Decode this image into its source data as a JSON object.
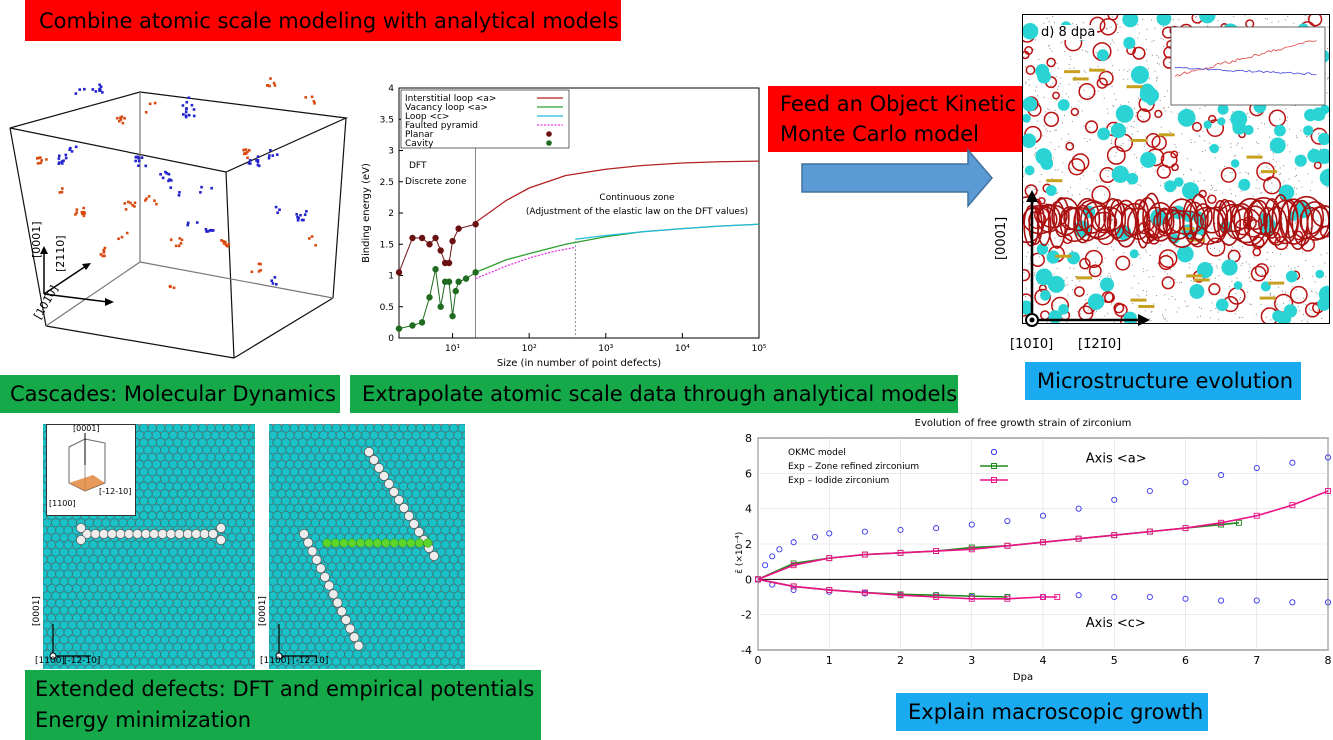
{
  "boxes": {
    "top_left": "Combine atomic scale modeling with analytical models",
    "feed_line1": "Feed an Object Kinetic",
    "feed_line2": "Monte Carlo model",
    "cascades": "Cascades: Molecular Dynamics",
    "extrapolate": "Extrapolate atomic scale data through analytical models",
    "microstructure": "Microstructure evolution",
    "extended_line1": "Extended defects: DFT and empirical potentials",
    "extended_line2": "Energy minimization",
    "explain": "Explain macroscopic growth"
  },
  "cube": {
    "axis_z": "[0001]",
    "axis_y": "[2̄110]",
    "axis_x": "[101̄0]"
  },
  "okmc": {
    "panel_label": "d) 8 dpa",
    "axis_vertical": "[0001]",
    "axis_origin": "[101̄0]",
    "axis_right": "[1̄21̄0]"
  },
  "atoms_left": {
    "inset_axis_top": "[0001]",
    "inset_axis_left": "[1100]",
    "inset_axis_right": "[-12-10]",
    "axis_vertical": "[0001]",
    "axis_origin": "[1100]",
    "axis_right": "[-12-10]"
  },
  "atoms_right": {
    "axis_vertical": "[0001]",
    "axis_origin": "[1100]",
    "axis_right": "[-12-10]"
  },
  "chart_data": [
    {
      "type": "line",
      "xlabel": "Size (in number of point defects)",
      "ylabel": "Binding energy (eV)",
      "x_scale": "log",
      "xlim": [
        2,
        100000
      ],
      "ylim": [
        0,
        4
      ],
      "x_ticks": [
        "10¹",
        "10²",
        "10³",
        "10⁴",
        "10⁵"
      ],
      "y_ticks": [
        "0",
        "0.5",
        "1",
        "1.5",
        "2",
        "2.5",
        "3",
        "3.5",
        "4"
      ],
      "annotations": [
        "DFT",
        "Discrete zone",
        "Continuous zone",
        "(Adjustment of the elastic law on   the DFT values)"
      ],
      "legend_position": "top-left",
      "series": [
        {
          "name": "Interstitial loop <a>",
          "color": "#b22222",
          "style": "line",
          "x": [
            20,
            50,
            100,
            300,
            1000,
            3000,
            10000,
            30000,
            100000
          ],
          "y": [
            1.85,
            2.2,
            2.4,
            2.6,
            2.7,
            2.76,
            2.8,
            2.82,
            2.83
          ]
        },
        {
          "name": "Vacancy loop <a>",
          "color": "#2ea02e",
          "style": "line",
          "x": [
            20,
            50,
            100,
            300,
            1000,
            3000,
            10000,
            30000,
            100000
          ],
          "y": [
            1.05,
            1.25,
            1.35,
            1.5,
            1.62,
            1.7,
            1.75,
            1.79,
            1.82
          ]
        },
        {
          "name": "Loop <c>",
          "color": "#22bbdd",
          "style": "line",
          "x": [
            400,
            1000,
            3000,
            10000,
            30000,
            100000
          ],
          "y": [
            1.58,
            1.64,
            1.7,
            1.75,
            1.79,
            1.82
          ]
        },
        {
          "name": "Faulted pyramid",
          "color": "#ee33ee",
          "style": "dashed",
          "x": [
            20,
            50,
            100,
            200,
            400
          ],
          "y": [
            0.95,
            1.15,
            1.28,
            1.38,
            1.45
          ]
        },
        {
          "name": "Planar",
          "color": "#6b1010",
          "style": "markers",
          "x": [
            2,
            3,
            4,
            5,
            6,
            7,
            8,
            9,
            10,
            12,
            20
          ],
          "y": [
            1.05,
            1.6,
            1.6,
            1.5,
            1.6,
            1.4,
            1.2,
            1.2,
            1.55,
            1.75,
            1.82
          ]
        },
        {
          "name": "Cavity",
          "color": "#1f6b1f",
          "style": "markers",
          "x": [
            2,
            3,
            4,
            5,
            6,
            7,
            8,
            9,
            10,
            11,
            12,
            15,
            20
          ],
          "y": [
            0.15,
            0.2,
            0.25,
            0.65,
            1.1,
            0.5,
            0.9,
            0.9,
            0.35,
            0.75,
            0.9,
            0.95,
            1.05
          ]
        }
      ]
    },
    {
      "type": "scatter",
      "title": "Evolution of free growth strain of zirconium",
      "xlabel": "Dpa",
      "ylabel": "ε̄ (×10⁻⁴)",
      "xlim": [
        0,
        8
      ],
      "ylim": [
        -4,
        8
      ],
      "x_ticks": [
        "0",
        "1",
        "2",
        "3",
        "4",
        "5",
        "6",
        "7",
        "8"
      ],
      "y_ticks": [
        "-4",
        "-2",
        "0",
        "2",
        "4",
        "6",
        "8"
      ],
      "annotations": [
        "Axis <a>",
        "Axis <c>"
      ],
      "legend_position": "top-left",
      "series": [
        {
          "name": "OKMC model",
          "color": "#3333ee",
          "marker": "circle",
          "x": [
            0,
            0.1,
            0.2,
            0.3,
            0.5,
            0.8,
            1,
            1.5,
            2,
            2.5,
            3,
            3.5,
            4,
            4.5,
            5,
            5.5,
            6,
            6.5,
            7,
            7.5,
            8
          ],
          "y": [
            0,
            0.8,
            1.3,
            1.7,
            2.1,
            2.4,
            2.6,
            2.7,
            2.8,
            2.9,
            3.1,
            3.3,
            3.6,
            4.0,
            4.5,
            5.0,
            5.5,
            5.9,
            6.3,
            6.6,
            6.9
          ]
        },
        {
          "name": "OKMC model (axis c)",
          "color": "#3333ee",
          "marker": "circle",
          "x": [
            0,
            0.2,
            0.5,
            1,
            1.5,
            2,
            2.5,
            3,
            3.5,
            4,
            4.5,
            5,
            5.5,
            6,
            6.5,
            7,
            7.5,
            8
          ],
          "y": [
            0,
            -0.3,
            -0.6,
            -0.7,
            -0.8,
            -0.9,
            -0.9,
            -1.0,
            -1.0,
            -1.0,
            -0.9,
            -1.0,
            -1.0,
            -1.1,
            -1.2,
            -1.2,
            -1.3,
            -1.3
          ]
        },
        {
          "name": "Exp – Zone refined zirconium",
          "color": "#1e8a1e",
          "marker": "square",
          "x": [
            0,
            0.5,
            1,
            1.5,
            2,
            2.5,
            3,
            3.5,
            4,
            4.5,
            5,
            5.5,
            6,
            6.5,
            6.75
          ],
          "y": [
            0,
            0.9,
            1.2,
            1.4,
            1.5,
            1.6,
            1.8,
            1.9,
            2.1,
            2.3,
            2.5,
            2.7,
            2.9,
            3.1,
            3.2
          ]
        },
        {
          "name": "Exp – Iodide zirconium",
          "color": "#ee1188",
          "marker": "square",
          "x": [
            0,
            0.5,
            1,
            1.5,
            2,
            2.5,
            3,
            3.5,
            4,
            4.5,
            5,
            5.5,
            6,
            6.5,
            7,
            7.5,
            8
          ],
          "y": [
            0,
            0.8,
            1.2,
            1.4,
            1.5,
            1.6,
            1.7,
            1.9,
            2.1,
            2.3,
            2.5,
            2.7,
            2.9,
            3.2,
            3.6,
            4.2,
            5.0
          ]
        },
        {
          "name": "Exp – Zone refined zirconium (axis c)",
          "color": "#1e8a1e",
          "marker": "square",
          "x": [
            0,
            0.5,
            1,
            1.5,
            2,
            2.5,
            3,
            3.5
          ],
          "y": [
            0,
            -0.4,
            -0.6,
            -0.75,
            -0.85,
            -0.9,
            -0.95,
            -1.0
          ]
        },
        {
          "name": "Exp – Iodide zirconium (axis c)",
          "color": "#ee1188",
          "marker": "square",
          "x": [
            0,
            0.5,
            1,
            1.5,
            2,
            2.5,
            3,
            3.5,
            4,
            4.2
          ],
          "y": [
            0,
            -0.4,
            -0.6,
            -0.75,
            -0.9,
            -1.0,
            -1.1,
            -1.1,
            -1.0,
            -1.0
          ]
        }
      ]
    }
  ]
}
